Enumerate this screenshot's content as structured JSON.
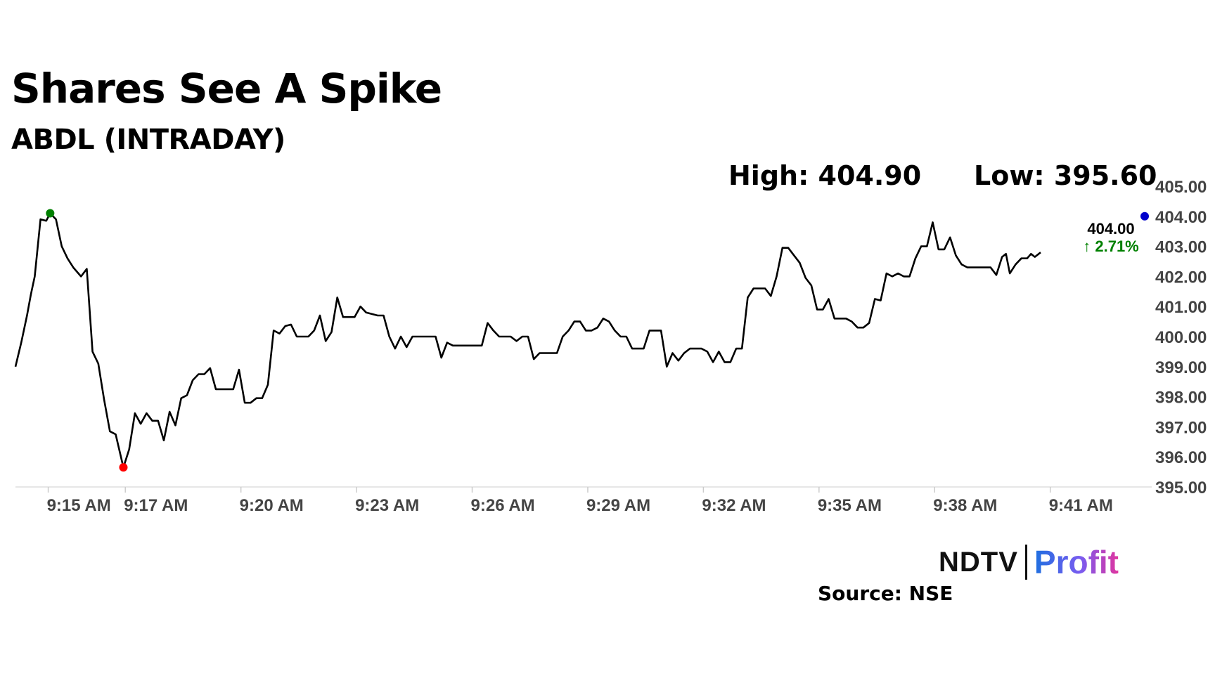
{
  "title": "Shares See A Spike",
  "subtitle": "ABDL (INTRADAY)",
  "stats": {
    "high_label": "High: 404.90",
    "low_label": "Low: 395.60"
  },
  "last": {
    "price": "404.00",
    "change": "2.71%",
    "change_arrow": "↑"
  },
  "logo": {
    "ndtv": "NDTV",
    "profit": "Profit"
  },
  "source": "Source: NSE",
  "colors": {
    "line": "#000000",
    "high_marker": "#008000",
    "low_marker": "#ff0000",
    "last_marker": "#0000cc",
    "change": "#008000",
    "grid": "#dddddd"
  },
  "chart_data": {
    "type": "line",
    "title": "Shares See A Spike",
    "subtitle": "ABDL (INTRADAY)",
    "xlabel": "",
    "ylabel": "",
    "x_ticks": [
      "9:15 AM",
      "9:17 AM",
      "9:20 AM",
      "9:23 AM",
      "9:26 AM",
      "9:29 AM",
      "9:32 AM",
      "9:35 AM",
      "9:38 AM",
      "9:41 AM"
    ],
    "y_ticks": [
      "395.00",
      "396.00",
      "397.00",
      "398.00",
      "399.00",
      "400.00",
      "401.00",
      "402.00",
      "403.00",
      "404.00",
      "405.00"
    ],
    "ylim": [
      395,
      405
    ],
    "xlim_minutes_after_915": [
      -0.85,
      28.45
    ],
    "high": 404.9,
    "low": 395.6,
    "last": 404.0,
    "series": [
      {
        "points": [
          [
            -0.85,
            399.0
          ],
          [
            -0.7,
            399.8
          ],
          [
            -0.55,
            400.7
          ],
          [
            -0.45,
            401.4
          ],
          [
            -0.35,
            402.0
          ],
          [
            -0.2,
            403.9
          ],
          [
            -0.05,
            403.85
          ],
          [
            0.05,
            404.1
          ],
          [
            0.2,
            403.9
          ],
          [
            0.35,
            403.0
          ],
          [
            0.5,
            402.6
          ],
          [
            0.65,
            402.3
          ],
          [
            0.85,
            402.0
          ],
          [
            1.0,
            402.25
          ],
          [
            1.15,
            399.5
          ],
          [
            1.3,
            399.1
          ],
          [
            1.45,
            397.9
          ],
          [
            1.6,
            396.85
          ],
          [
            1.75,
            396.75
          ],
          [
            1.95,
            395.65
          ],
          [
            2.1,
            396.25
          ],
          [
            2.25,
            397.45
          ],
          [
            2.4,
            397.1
          ],
          [
            2.55,
            397.45
          ],
          [
            2.7,
            397.2
          ],
          [
            2.85,
            397.2
          ],
          [
            3.0,
            396.55
          ],
          [
            3.15,
            397.5
          ],
          [
            3.3,
            397.05
          ],
          [
            3.45,
            397.95
          ],
          [
            3.6,
            398.05
          ],
          [
            3.75,
            398.55
          ],
          [
            3.9,
            398.75
          ],
          [
            4.05,
            398.75
          ],
          [
            4.2,
            398.95
          ],
          [
            4.35,
            398.25
          ],
          [
            4.5,
            398.25
          ],
          [
            4.65,
            398.25
          ],
          [
            4.8,
            398.25
          ],
          [
            4.95,
            398.9
          ],
          [
            5.1,
            397.8
          ],
          [
            5.25,
            397.8
          ],
          [
            5.4,
            397.95
          ],
          [
            5.55,
            397.95
          ],
          [
            5.7,
            398.4
          ],
          [
            5.85,
            400.2
          ],
          [
            6.0,
            400.1
          ],
          [
            6.15,
            400.35
          ],
          [
            6.3,
            400.4
          ],
          [
            6.45,
            400.0
          ],
          [
            6.6,
            400.0
          ],
          [
            6.75,
            400.0
          ],
          [
            6.9,
            400.2
          ],
          [
            7.05,
            400.7
          ],
          [
            7.2,
            399.85
          ],
          [
            7.35,
            400.15
          ],
          [
            7.5,
            401.3
          ],
          [
            7.65,
            400.65
          ],
          [
            7.8,
            400.65
          ],
          [
            7.95,
            400.65
          ],
          [
            8.1,
            401.0
          ],
          [
            8.25,
            400.8
          ],
          [
            8.4,
            400.75
          ],
          [
            8.55,
            400.7
          ],
          [
            8.7,
            400.7
          ],
          [
            8.85,
            400.0
          ],
          [
            9.0,
            399.6
          ],
          [
            9.15,
            400.0
          ],
          [
            9.3,
            399.65
          ],
          [
            9.45,
            400.0
          ],
          [
            9.6,
            400.0
          ],
          [
            9.75,
            400.0
          ],
          [
            9.9,
            400.0
          ],
          [
            10.05,
            400.0
          ],
          [
            10.2,
            399.3
          ],
          [
            10.35,
            399.8
          ],
          [
            10.5,
            399.7
          ],
          [
            10.65,
            399.7
          ],
          [
            10.8,
            399.7
          ],
          [
            10.95,
            399.7
          ],
          [
            11.1,
            399.7
          ],
          [
            11.25,
            399.7
          ],
          [
            11.4,
            400.45
          ],
          [
            11.55,
            400.2
          ],
          [
            11.7,
            400.0
          ],
          [
            11.85,
            400.0
          ],
          [
            12.0,
            400.0
          ],
          [
            12.15,
            399.85
          ],
          [
            12.3,
            400.0
          ],
          [
            12.45,
            400.0
          ],
          [
            12.6,
            399.25
          ],
          [
            12.75,
            399.45
          ],
          [
            12.9,
            399.45
          ],
          [
            13.05,
            399.45
          ],
          [
            13.2,
            399.45
          ],
          [
            13.35,
            400.0
          ],
          [
            13.5,
            400.2
          ],
          [
            13.65,
            400.5
          ],
          [
            13.8,
            400.5
          ],
          [
            13.95,
            400.2
          ],
          [
            14.1,
            400.2
          ],
          [
            14.25,
            400.3
          ],
          [
            14.4,
            400.6
          ],
          [
            14.55,
            400.5
          ],
          [
            14.7,
            400.2
          ],
          [
            14.85,
            400.0
          ],
          [
            15.0,
            400.0
          ],
          [
            15.15,
            399.6
          ],
          [
            15.3,
            399.6
          ],
          [
            15.45,
            399.6
          ],
          [
            15.6,
            400.2
          ],
          [
            15.75,
            400.2
          ],
          [
            15.9,
            400.2
          ],
          [
            16.05,
            399.0
          ],
          [
            16.2,
            399.45
          ],
          [
            16.35,
            399.2
          ],
          [
            16.5,
            399.45
          ],
          [
            16.65,
            399.6
          ],
          [
            16.8,
            399.6
          ],
          [
            16.95,
            399.6
          ],
          [
            17.1,
            399.5
          ],
          [
            17.25,
            399.15
          ],
          [
            17.4,
            399.5
          ],
          [
            17.55,
            399.15
          ],
          [
            17.7,
            399.15
          ],
          [
            17.85,
            399.6
          ],
          [
            18.0,
            399.6
          ],
          [
            18.15,
            401.3
          ],
          [
            18.3,
            401.6
          ],
          [
            18.45,
            401.6
          ],
          [
            18.6,
            401.6
          ],
          [
            18.75,
            401.35
          ],
          [
            18.9,
            402.0
          ],
          [
            19.05,
            402.95
          ],
          [
            19.2,
            402.95
          ],
          [
            19.35,
            402.7
          ],
          [
            19.5,
            402.45
          ],
          [
            19.65,
            401.95
          ],
          [
            19.8,
            401.7
          ],
          [
            19.95,
            400.9
          ],
          [
            20.1,
            400.9
          ],
          [
            20.25,
            401.25
          ],
          [
            20.4,
            400.6
          ],
          [
            20.55,
            400.6
          ],
          [
            20.7,
            400.6
          ],
          [
            20.85,
            400.5
          ],
          [
            21.0,
            400.3
          ],
          [
            21.15,
            400.3
          ],
          [
            21.3,
            400.45
          ],
          [
            21.45,
            401.25
          ],
          [
            21.6,
            401.2
          ],
          [
            21.75,
            402.1
          ],
          [
            21.9,
            402.0
          ],
          [
            22.05,
            402.1
          ],
          [
            22.2,
            402.0
          ],
          [
            22.35,
            402.0
          ],
          [
            22.5,
            402.6
          ],
          [
            22.65,
            403.0
          ],
          [
            22.8,
            403.0
          ],
          [
            22.95,
            403.8
          ],
          [
            23.1,
            402.9
          ],
          [
            23.25,
            402.9
          ],
          [
            23.4,
            403.3
          ],
          [
            23.55,
            402.7
          ],
          [
            23.7,
            402.4
          ],
          [
            23.85,
            402.3
          ],
          [
            24.0,
            402.3
          ],
          [
            24.15,
            402.3
          ],
          [
            24.3,
            402.3
          ],
          [
            24.45,
            402.3
          ],
          [
            24.6,
            402.05
          ],
          [
            24.75,
            402.65
          ],
          [
            24.85,
            402.75
          ],
          [
            24.95,
            402.1
          ],
          [
            25.1,
            402.4
          ],
          [
            25.25,
            402.6
          ],
          [
            25.4,
            402.6
          ],
          [
            25.5,
            402.75
          ],
          [
            25.6,
            402.65
          ],
          [
            25.75,
            402.8
          ]
        ]
      }
    ],
    "marker_high": [
      0.05,
      404.1
    ],
    "marker_low": [
      1.95,
      395.65
    ],
    "marker_last": [
      28.45,
      404.0
    ]
  }
}
